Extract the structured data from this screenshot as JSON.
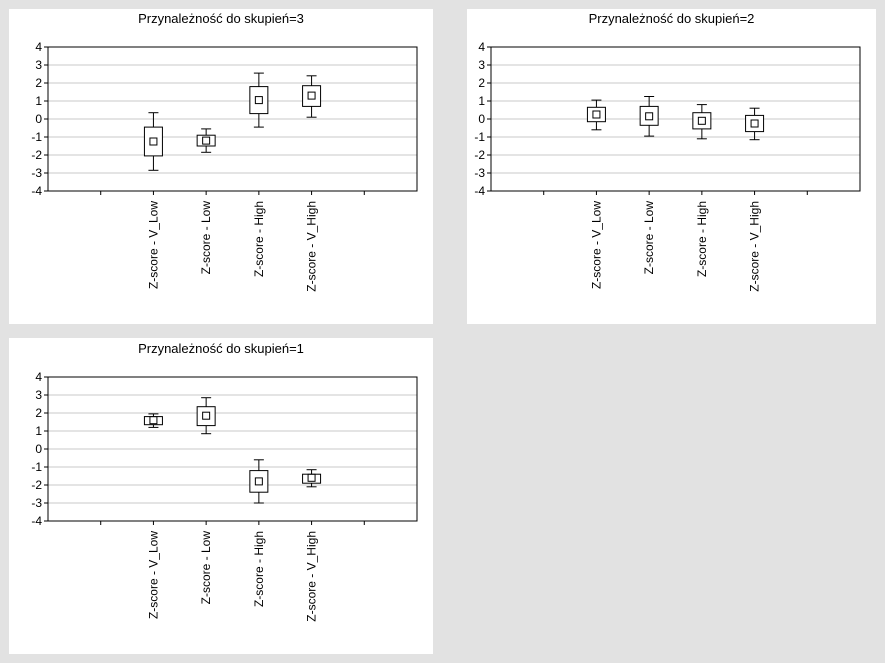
{
  "chart_data": [
    {
      "type": "box",
      "title": "Przynależność do skupień=3",
      "categories": [
        "Z-score - V_Low",
        "Z-score - Low",
        "Z-score - High",
        "Z-score - V_High"
      ],
      "ylim": [
        -4,
        4
      ],
      "yticks": [
        4,
        3,
        2,
        1,
        0,
        -1,
        -2,
        -3,
        -4
      ],
      "grid": true,
      "boxes": [
        {
          "median": -1.25,
          "q1": -2.05,
          "q3": -0.45,
          "min": -2.85,
          "max": 0.35
        },
        {
          "median": -1.2,
          "q1": -1.5,
          "q3": -0.9,
          "min": -1.85,
          "max": -0.55
        },
        {
          "median": 1.05,
          "q1": 0.3,
          "q3": 1.8,
          "min": -0.45,
          "max": 2.55
        },
        {
          "median": 1.3,
          "q1": 0.7,
          "q3": 1.85,
          "min": 0.1,
          "max": 2.4
        }
      ]
    },
    {
      "type": "box",
      "title": "Przynależność do skupień=2",
      "categories": [
        "Z-score - V_Low",
        "Z-score - Low",
        "Z-score - High",
        "Z-score - V_High"
      ],
      "ylim": [
        -4,
        4
      ],
      "yticks": [
        4,
        3,
        2,
        1,
        0,
        -1,
        -2,
        -3,
        -4
      ],
      "grid": true,
      "boxes": [
        {
          "median": 0.25,
          "q1": -0.15,
          "q3": 0.65,
          "min": -0.6,
          "max": 1.05
        },
        {
          "median": 0.15,
          "q1": -0.35,
          "q3": 0.7,
          "min": -0.95,
          "max": 1.25
        },
        {
          "median": -0.1,
          "q1": -0.55,
          "q3": 0.35,
          "min": -1.1,
          "max": 0.8
        },
        {
          "median": -0.25,
          "q1": -0.7,
          "q3": 0.2,
          "min": -1.15,
          "max": 0.6
        }
      ]
    },
    {
      "type": "box",
      "title": "Przynależność do skupień=1",
      "categories": [
        "Z-score - V_Low",
        "Z-score - Low",
        "Z-score - High",
        "Z-score - V_High"
      ],
      "ylim": [
        -4,
        4
      ],
      "yticks": [
        4,
        3,
        2,
        1,
        0,
        -1,
        -2,
        -3,
        -4
      ],
      "grid": true,
      "boxes": [
        {
          "median": 1.6,
          "q1": 1.35,
          "q3": 1.8,
          "min": 1.2,
          "max": 1.95
        },
        {
          "median": 1.85,
          "q1": 1.3,
          "q3": 2.35,
          "min": 0.85,
          "max": 2.85
        },
        {
          "median": -1.8,
          "q1": -2.4,
          "q3": -1.2,
          "min": -3.0,
          "max": -0.6
        },
        {
          "median": -1.6,
          "q1": -1.9,
          "q3": -1.4,
          "min": -2.1,
          "max": -1.15
        }
      ]
    }
  ]
}
